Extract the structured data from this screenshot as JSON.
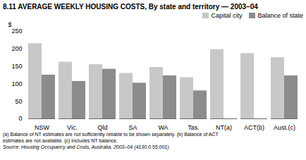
{
  "chart_data": {
    "type": "bar",
    "title": "8.11  AVERAGE WEEKLY HOUSING COSTS, By state and territory — 2003–04",
    "ylabel": "$",
    "categories": [
      "NSW",
      "Vic.",
      "Qld",
      "SA",
      "WA",
      "Tas.",
      "NT(a)",
      "ACT(b)",
      "Aust.(c)"
    ],
    "series": [
      {
        "name": "Capital city",
        "color": "#c8c8c8",
        "values": [
          215,
          162,
          155,
          130,
          147,
          118,
          198,
          187,
          175
        ]
      },
      {
        "name": "Balance of state",
        "color": "#8c8c8c",
        "values": [
          125,
          107,
          142,
          102,
          123,
          80,
          null,
          null,
          123
        ]
      }
    ],
    "ylim": [
      0,
      250
    ],
    "yticks": [
      0,
      50,
      100,
      150,
      200,
      250
    ],
    "grid": false,
    "legend": "upper right",
    "annotations": [
      "(a) Balance of NT estimates are not sufficiently reliable to be shown separately. (b) Balance of ACT",
      "estimates are not available.  (c) Includes NT balance.",
      "Source:  Housing Occupancy and Costs, Australia, 2003–04 (4130.0.55.001)."
    ]
  }
}
